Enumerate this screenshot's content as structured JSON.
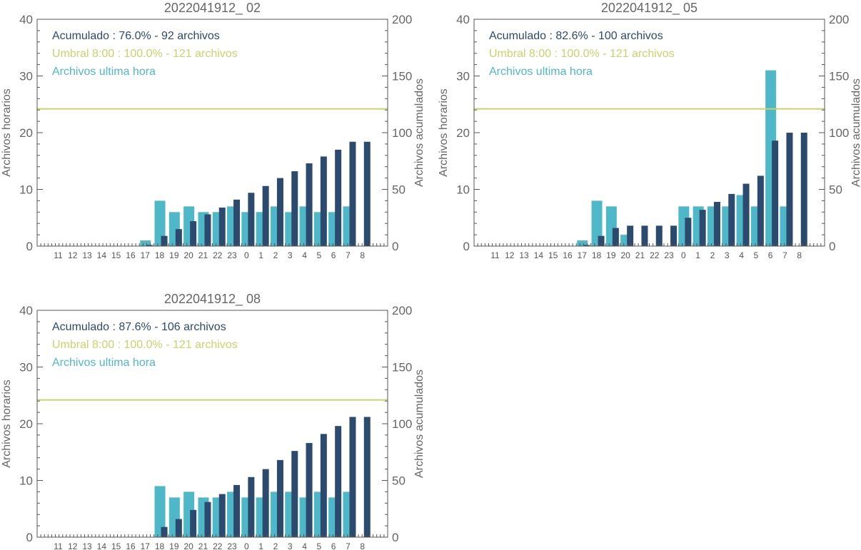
{
  "colors": {
    "hourly": "#4eb8c8",
    "cumulative": "#2c4a6e",
    "threshold": "#c8d46a",
    "axis": "#555555"
  },
  "chart_data": [
    {
      "type": "bar",
      "title": "2022041912_ 02",
      "ylabel": "Archivos horarios",
      "y2label": "Archivos acumulados",
      "ylim": [
        0,
        40
      ],
      "y2lim": [
        0,
        200
      ],
      "yticks": [
        "0",
        "10",
        "20",
        "30",
        "40"
      ],
      "y2ticks": [
        "0",
        "50",
        "100",
        "150",
        "200"
      ],
      "categories": [
        "11",
        "12",
        "13",
        "14",
        "15",
        "16",
        "17",
        "18",
        "19",
        "20",
        "21",
        "22",
        "23",
        "0",
        "1",
        "2",
        "3",
        "4",
        "5",
        "6",
        "7",
        "8"
      ],
      "legend": [
        "Acumulado : 76.0% - 92 archivos",
        "Umbral 8:00 : 100.0% - 121 archivos",
        "Archivos ultima hora"
      ],
      "threshold": 121,
      "series": [
        {
          "name": "Archivos ultima hora",
          "axis": "left",
          "values": [
            0,
            0,
            0,
            0,
            0,
            0,
            1,
            8,
            6,
            7,
            6,
            6,
            7,
            6,
            6,
            7,
            6,
            7,
            6,
            6,
            7,
            0
          ]
        },
        {
          "name": "Acumulado",
          "axis": "right",
          "values": [
            0,
            0,
            0,
            0,
            0,
            0,
            1,
            9,
            15,
            22,
            28,
            34,
            41,
            47,
            53,
            60,
            66,
            73,
            79,
            85,
            92,
            92
          ]
        }
      ]
    },
    {
      "type": "bar",
      "title": "2022041912_ 05",
      "ylabel": "Archivos horarios",
      "y2label": "Archivos acumulados",
      "ylim": [
        0,
        40
      ],
      "y2lim": [
        0,
        200
      ],
      "yticks": [
        "0",
        "10",
        "20",
        "30",
        "40"
      ],
      "y2ticks": [
        "0",
        "50",
        "100",
        "150",
        "200"
      ],
      "categories": [
        "11",
        "12",
        "13",
        "14",
        "15",
        "16",
        "17",
        "18",
        "19",
        "20",
        "21",
        "22",
        "23",
        "0",
        "1",
        "2",
        "3",
        "4",
        "5",
        "6",
        "7",
        "8"
      ],
      "legend": [
        "Acumulado : 82.6% - 100 archivos",
        "Umbral 8:00 : 100.0% - 121 archivos",
        "Archivos ultima hora"
      ],
      "threshold": 121,
      "series": [
        {
          "name": "Archivos ultima hora",
          "axis": "left",
          "values": [
            0,
            0,
            0,
            0,
            0,
            0,
            1,
            8,
            7,
            2,
            0,
            0,
            0,
            7,
            7,
            7,
            7,
            9,
            7,
            31,
            7,
            0
          ]
        },
        {
          "name": "Acumulado",
          "axis": "right",
          "values": [
            0,
            0,
            0,
            0,
            0,
            0,
            1,
            9,
            16,
            18,
            18,
            18,
            18,
            25,
            32,
            39,
            46,
            55,
            62,
            93,
            100,
            100
          ]
        }
      ]
    },
    {
      "type": "bar",
      "title": "2022041912_ 08",
      "ylabel": "Archivos horarios",
      "y2label": "Archivos acumulados",
      "ylim": [
        0,
        40
      ],
      "y2lim": [
        0,
        200
      ],
      "yticks": [
        "0",
        "10",
        "20",
        "30",
        "40"
      ],
      "y2ticks": [
        "0",
        "50",
        "100",
        "150",
        "200"
      ],
      "categories": [
        "11",
        "12",
        "13",
        "14",
        "15",
        "16",
        "17",
        "18",
        "19",
        "20",
        "21",
        "22",
        "23",
        "0",
        "1",
        "2",
        "3",
        "4",
        "5",
        "6",
        "7",
        "8"
      ],
      "legend": [
        "Acumulado : 87.6% - 106 archivos",
        "Umbral 8:00 : 100.0% - 121 archivos",
        "Archivos ultima hora"
      ],
      "threshold": 121,
      "series": [
        {
          "name": "Archivos ultima hora",
          "axis": "left",
          "values": [
            0,
            0,
            0,
            0,
            0,
            0,
            0,
            9,
            7,
            8,
            7,
            7,
            8,
            7,
            7,
            8,
            8,
            7,
            8,
            7,
            8,
            0
          ]
        },
        {
          "name": "Acumulado",
          "axis": "right",
          "values": [
            0,
            0,
            0,
            0,
            0,
            0,
            0,
            9,
            16,
            24,
            31,
            38,
            46,
            53,
            60,
            68,
            76,
            83,
            91,
            98,
            106,
            106
          ]
        }
      ]
    }
  ]
}
